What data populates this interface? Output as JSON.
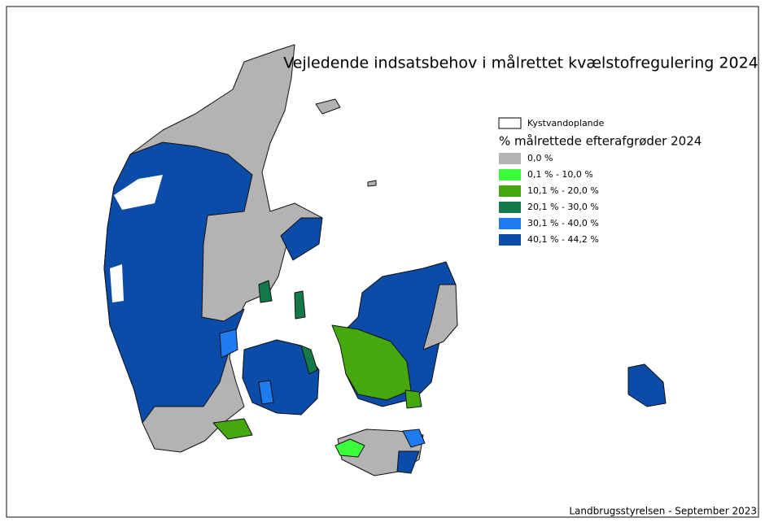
{
  "header": {
    "title": "Vejledende indsatsbehov i målrettet kvælstofregulering 2024"
  },
  "legend": {
    "outline_label": "Kystvandoplande",
    "title": "% målrettede efterafgrøder 2024",
    "items": [
      {
        "label": "0,0 %",
        "color": "#b3b3b3"
      },
      {
        "label": "0,1 % - 10,0 %",
        "color": "#3cff3c"
      },
      {
        "label": "10,1 % - 20,0 %",
        "color": "#46a80f"
      },
      {
        "label": "20,1 % - 30,0 %",
        "color": "#157a4a"
      },
      {
        "label": "30,1 % - 40,0 %",
        "color": "#1e7cf0"
      },
      {
        "label": "40,1 % - 44,2 %",
        "color": "#0a4ca8"
      }
    ]
  },
  "footer": {
    "credit": "Landbrugsstyrelsen - September 2023"
  }
}
